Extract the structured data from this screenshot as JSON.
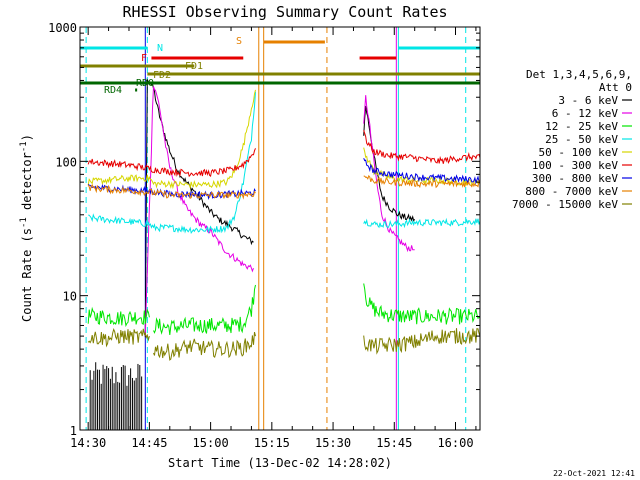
{
  "chart_data": {
    "type": "line",
    "title": "RHESSI Observing Summary Count Rates",
    "xlabel": "Start Time (13-Dec-02 14:28:02)",
    "ylabel": "Count Rate (s^-1 detector^-1)",
    "y_scale": "log",
    "ylim": [
      1,
      1000
    ],
    "xlim_minutes_from_1430": [
      -2,
      96
    ],
    "x_ticks": [
      {
        "t": 0,
        "label": "14:30"
      },
      {
        "t": 15,
        "label": "14:45"
      },
      {
        "t": 30,
        "label": "15:00"
      },
      {
        "t": 45,
        "label": "15:15"
      },
      {
        "t": 60,
        "label": "15:30"
      },
      {
        "t": 75,
        "label": "15:45"
      },
      {
        "t": 90,
        "label": "16:00"
      }
    ],
    "y_ticks": [
      {
        "v": 1,
        "label": "1"
      },
      {
        "v": 10,
        "label": "10"
      },
      {
        "v": 100,
        "label": "100"
      },
      {
        "v": 1000,
        "label": "1000"
      }
    ],
    "legend_header": [
      "Det 1,3,4,5,6,9,",
      "Att 0"
    ],
    "series": [
      {
        "name": "3 - 6 keV",
        "color": "#000000",
        "segments": [
          {
            "t": [
              14,
              14.5,
              16,
              17,
              18,
              19,
              20,
              22,
              24,
              26,
              28,
              30,
              32,
              34,
              36,
              38.5,
              40.5
            ],
            "v": [
              5,
              420,
              350,
              250,
              190,
              150,
              120,
              85,
              70,
              60,
              50,
              42,
              37,
              34,
              31,
              27,
              25
            ]
          },
          {
            "t": [
              67.5,
              68,
              69,
              70,
              71,
              72,
              74,
              76,
              78,
              80
            ],
            "v": [
              160,
              260,
              170,
              110,
              75,
              55,
              45,
              40,
              38,
              37
            ]
          }
        ]
      },
      {
        "name": "6 - 12 keV",
        "color": "#e600e6",
        "segments": [
          {
            "t": [
              14,
              16,
              17,
              18,
              19,
              20,
              22,
              24,
              26,
              28,
              30,
              32,
              34,
              36,
              38,
              40.5
            ],
            "v": [
              5,
              380,
              300,
              200,
              130,
              90,
              60,
              45,
              38,
              33,
              30,
              25,
              21,
              19,
              17,
              16
            ]
          },
          {
            "t": [
              67.5,
              68,
              69,
              70,
              71,
              72,
              74,
              76,
              78,
              80
            ],
            "v": [
              180,
              300,
              180,
              100,
              60,
              40,
              30,
              26,
              23,
              22
            ]
          }
        ]
      },
      {
        "name": "12 - 25 keV",
        "color": "#00e600",
        "segments": [
          {
            "t": [
              0,
              4,
              8,
              12,
              15
            ],
            "v": [
              7,
              7,
              6.8,
              7,
              6.9
            ]
          },
          {
            "t": [
              16,
              20,
              25,
              30,
              35,
              38,
              40,
              41
            ],
            "v": [
              6,
              5.8,
              6,
              6,
              6,
              6.2,
              8,
              12
            ]
          },
          {
            "t": [
              67.5,
              68,
              69,
              71,
              74,
              78,
              84,
              90,
              96
            ],
            "v": [
              13,
              10,
              8.5,
              7.5,
              7.2,
              7,
              7,
              7,
              7
            ]
          }
        ]
      },
      {
        "name": "25 - 50 keV",
        "color": "#00e6e6",
        "segments": [
          {
            "t": [
              0,
              4,
              8,
              12,
              15,
              16,
              20,
              25,
              30,
              34,
              36,
              38,
              40,
              41
            ],
            "v": [
              38,
              37,
              36,
              35,
              34,
              32,
              32,
              31,
              31,
              32,
              40,
              70,
              150,
              330
            ]
          },
          {
            "t": [
              67.5,
              70,
              75,
              80,
              85,
              90,
              96
            ],
            "v": [
              36,
              34,
              34,
              35,
              35,
              35,
              36
            ]
          }
        ]
      },
      {
        "name": "50 - 100 keV",
        "color": "#d6d600",
        "segments": [
          {
            "t": [
              0,
              4,
              8,
              12,
              15,
              16,
              20,
              25,
              30,
              34,
              36,
              38,
              40,
              41
            ],
            "v": [
              70,
              72,
              74,
              75,
              75,
              68,
              68,
              67,
              67,
              70,
              85,
              130,
              250,
              340
            ]
          },
          {
            "t": [
              67.5,
              68,
              70,
              74,
              80,
              86,
              92,
              96
            ],
            "v": [
              120,
              110,
              85,
              75,
              72,
              72,
              70,
              70
            ]
          }
        ]
      },
      {
        "name": "100 - 300 keV",
        "color": "#e60000",
        "segments": [
          {
            "t": [
              0,
              4,
              8,
              12,
              15,
              20,
              25,
              30,
              35,
              38,
              40,
              41
            ],
            "v": [
              100,
              97,
              95,
              92,
              88,
              84,
              82,
              82,
              86,
              95,
              110,
              125
            ]
          },
          {
            "t": [
              67.5,
              68,
              70,
              74,
              78,
              82,
              86,
              90,
              94,
              96
            ],
            "v": [
              175,
              145,
              118,
              110,
              108,
              104,
              100,
              105,
              108,
              106
            ]
          }
        ]
      },
      {
        "name": "300 - 800 keV",
        "color": "#0000e6",
        "segments": [
          {
            "t": [
              0,
              4,
              8,
              12,
              15,
              20,
              25,
              30,
              35,
              40,
              41
            ],
            "v": [
              65,
              63,
              62,
              61,
              60,
              57,
              57,
              56,
              57,
              58,
              60
            ]
          },
          {
            "t": [
              67.5,
              70,
              74,
              78,
              82,
              86,
              90,
              96
            ],
            "v": [
              100,
              85,
              80,
              78,
              76,
              75,
              74,
              73
            ]
          }
        ]
      },
      {
        "name": "800 - 7000 keV",
        "color": "#e68000",
        "segments": [
          {
            "t": [
              0,
              4,
              8,
              12,
              15,
              20,
              25,
              30,
              35,
              40,
              41
            ],
            "v": [
              64,
              62,
              61,
              60,
              59,
              56,
              56,
              56,
              56,
              57,
              58
            ]
          },
          {
            "t": [
              67.5,
              70,
              74,
              78,
              82,
              86,
              90,
              96
            ],
            "v": [
              78,
              72,
              70,
              69,
              68,
              68,
              68,
              68
            ]
          }
        ]
      },
      {
        "name": "7000 - 15000 keV",
        "color": "#808000",
        "segments": [
          {
            "t": [
              0,
              4,
              8,
              12,
              15
            ],
            "v": [
              5,
              4.8,
              5,
              4.9,
              5
            ]
          },
          {
            "t": [
              16,
              20,
              25,
              30,
              35,
              38,
              40,
              41
            ],
            "v": [
              4,
              3.8,
              4.2,
              4,
              4,
              4.1,
              4.5,
              5
            ]
          },
          {
            "t": [
              67.5,
              70,
              75,
              80,
              85,
              90,
              96
            ],
            "v": [
              4.5,
              4.2,
              4.3,
              4.5,
              5,
              5,
              5
            ]
          }
        ]
      }
    ],
    "flag_bars": [
      {
        "label": "N",
        "color": "#00e6e6",
        "t0": -2,
        "t1": 14.5,
        "t1b": 76,
        "t2b": 96,
        "row": 1
      },
      {
        "label": "S",
        "color": "#e68000",
        "t0": 43,
        "t1": 58,
        "row": 0
      },
      {
        "label": "F",
        "color": "#e60000",
        "t0": 15.5,
        "t1": 38,
        "t0b": 66.5,
        "t1b": 75.5,
        "row": 2
      },
      {
        "label": "FD1",
        "color": "#808000",
        "t0": -2,
        "t1": 26,
        "row": 3
      },
      {
        "label": "FD2",
        "color": "#808000",
        "t0": 14.5,
        "t1": 96,
        "row": 4
      },
      {
        "label": "RD0",
        "color": "#006600",
        "t0": -2,
        "t1": 96,
        "row": 5
      },
      {
        "label": "RD4",
        "color": "#006600",
        "t0": 11.5,
        "t1": 12,
        "row": 6
      }
    ],
    "vertical_markers": [
      {
        "t": -0.5,
        "color": "#00e6e6",
        "style": "dashed"
      },
      {
        "t": 14.5,
        "color": "#00e6e6",
        "style": "dashed"
      },
      {
        "t": 14.0,
        "color": "#0000e6",
        "style": "solid"
      },
      {
        "t": 41.8,
        "color": "#e68000",
        "style": "solid"
      },
      {
        "t": 43.0,
        "color": "#e68000",
        "style": "solid"
      },
      {
        "t": 58.5,
        "color": "#e68000",
        "style": "dashed"
      },
      {
        "t": 75.5,
        "color": "#e600e6",
        "style": "solid"
      },
      {
        "t": 76.0,
        "color": "#00e6e6",
        "style": "solid"
      },
      {
        "t": 92.5,
        "color": "#00e6e6",
        "style": "dashed"
      }
    ],
    "noise_bars_low": {
      "color": "#000000",
      "t0": 0.5,
      "t1": 13.5
    }
  },
  "footer": {
    "generated": "22-Oct-2021 12:41"
  }
}
